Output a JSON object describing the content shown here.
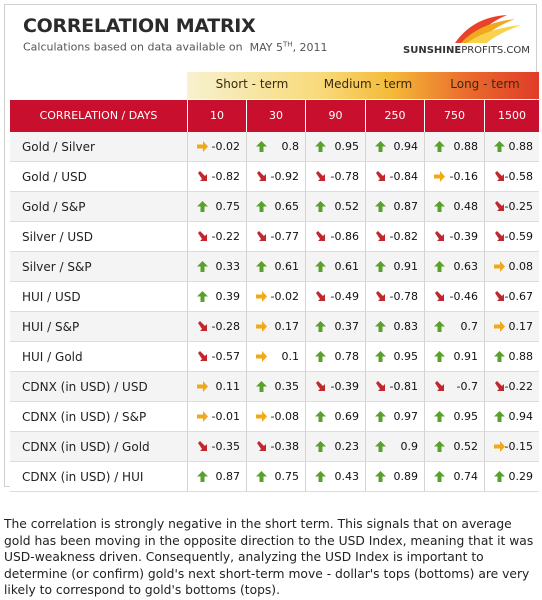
{
  "header": {
    "title": "CORRELATION MATRIX",
    "subtitle_prefix": "Calculations based on data available on",
    "subtitle_month": "MAY 5",
    "subtitle_sup": "TH",
    "subtitle_year": ", 2011",
    "logo_bold": "SUNSHINE",
    "logo_thin": "PROFITS.COM"
  },
  "terms": [
    "Short - term",
    "Medium - term",
    "Long - term"
  ],
  "columns": {
    "label": "CORRELATION / DAYS",
    "days": [
      "10",
      "30",
      "90",
      "250",
      "750",
      "1500"
    ]
  },
  "colors": {
    "header_red": "#c8102e",
    "arrow_up": "#5aa02c",
    "arrow_down": "#c0282d",
    "arrow_flat": "#f0a81c"
  },
  "rows": [
    {
      "pair": "Gold / Silver",
      "values": [
        "-0.02",
        "0.8",
        "0.95",
        "0.94",
        "0.88",
        "0.88"
      ],
      "arrows": [
        "flat",
        "up",
        "up",
        "up",
        "up",
        "up"
      ]
    },
    {
      "pair": "Gold / USD",
      "values": [
        "-0.82",
        "-0.92",
        "-0.78",
        "-0.84",
        "-0.16",
        "-0.58"
      ],
      "arrows": [
        "down",
        "down",
        "down",
        "down",
        "flat",
        "down"
      ]
    },
    {
      "pair": "Gold / S&P",
      "values": [
        "0.75",
        "0.65",
        "0.52",
        "0.87",
        "0.48",
        "-0.25"
      ],
      "arrows": [
        "up",
        "up",
        "up",
        "up",
        "up",
        "down"
      ]
    },
    {
      "pair": "Silver / USD",
      "values": [
        "-0.22",
        "-0.77",
        "-0.86",
        "-0.82",
        "-0.39",
        "-0.59"
      ],
      "arrows": [
        "down",
        "down",
        "down",
        "down",
        "down",
        "down"
      ]
    },
    {
      "pair": "Silver / S&P",
      "values": [
        "0.33",
        "0.61",
        "0.61",
        "0.91",
        "0.63",
        "0.08"
      ],
      "arrows": [
        "up",
        "up",
        "up",
        "up",
        "up",
        "flat"
      ]
    },
    {
      "pair": "HUI / USD",
      "values": [
        "0.39",
        "-0.02",
        "-0.49",
        "-0.78",
        "-0.46",
        "-0.67"
      ],
      "arrows": [
        "up",
        "flat",
        "down",
        "down",
        "down",
        "down"
      ]
    },
    {
      "pair": "HUI / S&P",
      "values": [
        "-0.28",
        "0.17",
        "0.37",
        "0.83",
        "0.7",
        "0.17"
      ],
      "arrows": [
        "down",
        "flat",
        "up",
        "up",
        "up",
        "flat"
      ]
    },
    {
      "pair": "HUI / Gold",
      "values": [
        "-0.57",
        "0.1",
        "0.78",
        "0.95",
        "0.91",
        "0.88"
      ],
      "arrows": [
        "down",
        "flat",
        "up",
        "up",
        "up",
        "up"
      ]
    },
    {
      "pair": "CDNX (in USD) / USD",
      "values": [
        "0.11",
        "0.35",
        "-0.39",
        "-0.81",
        "-0.7",
        "-0.22"
      ],
      "arrows": [
        "flat",
        "up",
        "down",
        "down",
        "down",
        "down"
      ]
    },
    {
      "pair": "CDNX (in USD) / S&P",
      "values": [
        "-0.01",
        "-0.08",
        "0.69",
        "0.97",
        "0.95",
        "0.94"
      ],
      "arrows": [
        "flat",
        "flat",
        "up",
        "up",
        "up",
        "up"
      ]
    },
    {
      "pair": "CDNX (in USD) / Gold",
      "values": [
        "-0.35",
        "-0.38",
        "0.23",
        "0.9",
        "0.52",
        "-0.15"
      ],
      "arrows": [
        "down",
        "down",
        "up",
        "up",
        "up",
        "flat"
      ]
    },
    {
      "pair": "CDNX (in USD) / HUI",
      "values": [
        "0.87",
        "0.75",
        "0.43",
        "0.89",
        "0.74",
        "0.29"
      ],
      "arrows": [
        "up",
        "up",
        "up",
        "up",
        "up",
        "up"
      ]
    }
  ],
  "notes": "The correlation is strongly negative in the short term. This signals that on average gold has been moving in the opposite direction to the USD Index, meaning that it was USD-weakness driven. Consequently, analyzing the USD Index is important to determine (or confirm) gold's next short-term move - dollar's tops (bottoms) are very likely to correspond to gold's bottoms (tops)."
}
